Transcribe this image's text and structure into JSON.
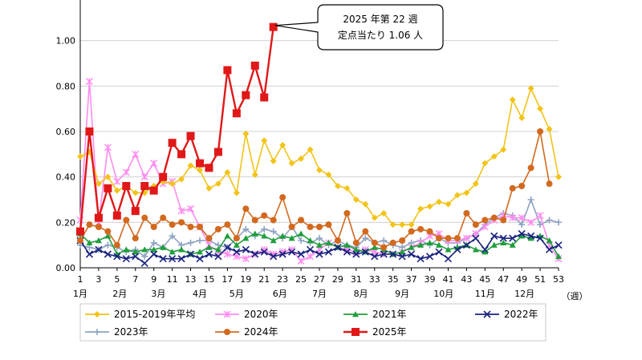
{
  "chart_data": {
    "type": "line",
    "ylim": [
      0,
      1.2
    ],
    "y_ticks": [
      "0.00",
      "0.20",
      "0.40",
      "0.60",
      "0.80",
      "1.00"
    ],
    "x_ticks": [
      "1",
      "3",
      "5",
      "7",
      "9",
      "11",
      "13",
      "15",
      "17",
      "19",
      "21",
      "23",
      "25",
      "27",
      "29",
      "31",
      "33",
      "35",
      "37",
      "39",
      "41",
      "43",
      "45",
      "47",
      "49",
      "51",
      "53"
    ],
    "x_unit": "（週）",
    "months": [
      {
        "label": "1月",
        "week": 1
      },
      {
        "label": "2月",
        "week": 5.3
      },
      {
        "label": "3月",
        "week": 9.5
      },
      {
        "label": "4月",
        "week": 14
      },
      {
        "label": "5月",
        "week": 18
      },
      {
        "label": "6月",
        "week": 22.7
      },
      {
        "label": "7月",
        "week": 27
      },
      {
        "label": "8月",
        "week": 31.5
      },
      {
        "label": "9月",
        "week": 36
      },
      {
        "label": "10月",
        "week": 40.5
      },
      {
        "label": "11月",
        "week": 45
      },
      {
        "label": "12月",
        "week": 49.3
      }
    ],
    "callout": {
      "line1": "2025 年第 22 週",
      "line2": "定点当たり 1.06 人",
      "week": 22
    },
    "series": [
      {
        "name": "2015-2019年平均",
        "color": "#f2c318",
        "marker": "diamond",
        "values": [
          0.49,
          0.51,
          0.37,
          0.4,
          0.34,
          0.36,
          0.33,
          0.33,
          0.36,
          0.38,
          0.37,
          0.39,
          0.45,
          0.43,
          0.35,
          0.37,
          0.42,
          0.33,
          0.59,
          0.41,
          0.56,
          0.47,
          0.54,
          0.46,
          0.48,
          0.52,
          0.43,
          0.41,
          0.36,
          0.35,
          0.3,
          0.28,
          0.22,
          0.24,
          0.19,
          0.19,
          0.19,
          0.26,
          0.27,
          0.29,
          0.28,
          0.32,
          0.33,
          0.37,
          0.46,
          0.49,
          0.52,
          0.74,
          0.66,
          0.79,
          0.7,
          0.61,
          0.4
        ]
      },
      {
        "name": "2020年",
        "color": "#ff8cf0",
        "marker": "star",
        "values": [
          0.21,
          0.82,
          0.2,
          0.53,
          0.38,
          0.42,
          0.5,
          0.4,
          0.46,
          0.37,
          0.38,
          0.25,
          0.26,
          0.18,
          0.1,
          0.07,
          0.06,
          0.05,
          0.04,
          0.06,
          0.08,
          0.06,
          0.07,
          0.08,
          0.03,
          0.05,
          0.08,
          0.11,
          0.09,
          0.08,
          0.07,
          0.08,
          0.07,
          0.06,
          0.06,
          0.07,
          0.09,
          0.11,
          0.14,
          0.15,
          0.12,
          0.12,
          0.13,
          0.15,
          0.18,
          0.21,
          0.23,
          0.22,
          0.22,
          0.2,
          0.23,
          0.1,
          0.04
        ]
      },
      {
        "name": "2021年",
        "color": "#1f9e3c",
        "marker": "triangle",
        "values": [
          0.15,
          0.11,
          0.12,
          0.14,
          0.06,
          0.08,
          0.07,
          0.08,
          0.08,
          0.09,
          0.07,
          0.08,
          0.06,
          0.07,
          0.09,
          0.08,
          0.14,
          0.1,
          0.13,
          0.15,
          0.14,
          0.12,
          0.14,
          0.13,
          0.15,
          0.12,
          0.1,
          0.11,
          0.09,
          0.1,
          0.08,
          0.07,
          0.09,
          0.08,
          0.06,
          0.07,
          0.09,
          0.1,
          0.11,
          0.1,
          0.08,
          0.09,
          0.1,
          0.08,
          0.07,
          0.1,
          0.11,
          0.1,
          0.14,
          0.13,
          0.14,
          0.12,
          0.05
        ]
      },
      {
        "name": "2022年",
        "color": "#1a237e",
        "marker": "x",
        "values": [
          0.12,
          0.06,
          0.08,
          0.06,
          0.05,
          0.04,
          0.05,
          0.02,
          0.06,
          0.04,
          0.04,
          0.04,
          0.06,
          0.04,
          0.06,
          0.05,
          0.09,
          0.07,
          0.08,
          0.06,
          0.07,
          0.05,
          0.06,
          0.07,
          0.06,
          0.08,
          0.06,
          0.07,
          0.09,
          0.07,
          0.06,
          0.07,
          0.05,
          0.06,
          0.06,
          0.05,
          0.06,
          0.04,
          0.05,
          0.07,
          0.04,
          0.08,
          0.1,
          0.13,
          0.08,
          0.14,
          0.13,
          0.13,
          0.15,
          0.14,
          0.13,
          0.08,
          0.1
        ]
      },
      {
        "name": "2023年",
        "color": "#8fa3c2",
        "marker": "plus",
        "values": [
          0.1,
          0.09,
          0.08,
          0.1,
          0.09,
          0.07,
          0.08,
          0.05,
          0.11,
          0.09,
          0.14,
          0.1,
          0.11,
          0.12,
          0.12,
          0.1,
          0.09,
          0.13,
          0.17,
          0.14,
          0.17,
          0.16,
          0.13,
          0.18,
          0.12,
          0.11,
          0.13,
          0.1,
          0.12,
          0.1,
          0.09,
          0.13,
          0.11,
          0.12,
          0.1,
          0.09,
          0.11,
          0.12,
          0.1,
          0.13,
          0.11,
          0.11,
          0.13,
          0.15,
          0.19,
          0.22,
          0.24,
          0.23,
          0.19,
          0.3,
          0.19,
          0.21,
          0.2
        ]
      },
      {
        "name": "2024年",
        "color": "#d2691e",
        "marker": "circle",
        "values": [
          0.12,
          0.19,
          0.18,
          0.16,
          0.1,
          0.21,
          0.13,
          0.22,
          0.18,
          0.22,
          0.19,
          0.2,
          0.18,
          0.18,
          0.13,
          0.17,
          0.19,
          0.13,
          0.26,
          0.21,
          0.23,
          0.21,
          0.31,
          0.18,
          0.21,
          0.18,
          0.18,
          0.19,
          0.12,
          0.24,
          0.11,
          0.16,
          0.11,
          0.09,
          0.11,
          0.12,
          0.16,
          0.17,
          0.16,
          0.13,
          0.13,
          0.13,
          0.24,
          0.19,
          0.21,
          0.22,
          0.21,
          0.35,
          0.36,
          0.44,
          0.6,
          0.37,
          null
        ]
      },
      {
        "name": "2025年",
        "color": "#e01818",
        "marker": "square",
        "values": [
          0.16,
          0.6,
          0.22,
          0.35,
          0.23,
          0.36,
          0.25,
          0.36,
          0.34,
          0.4,
          0.55,
          0.5,
          0.58,
          0.46,
          0.44,
          0.51,
          0.87,
          0.68,
          0.76,
          0.89,
          0.75,
          1.06,
          null,
          null,
          null,
          null,
          null,
          null,
          null,
          null,
          null,
          null,
          null,
          null,
          null,
          null,
          null,
          null,
          null,
          null,
          null,
          null,
          null,
          null,
          null,
          null,
          null,
          null,
          null,
          null,
          null,
          null,
          null
        ]
      }
    ]
  }
}
